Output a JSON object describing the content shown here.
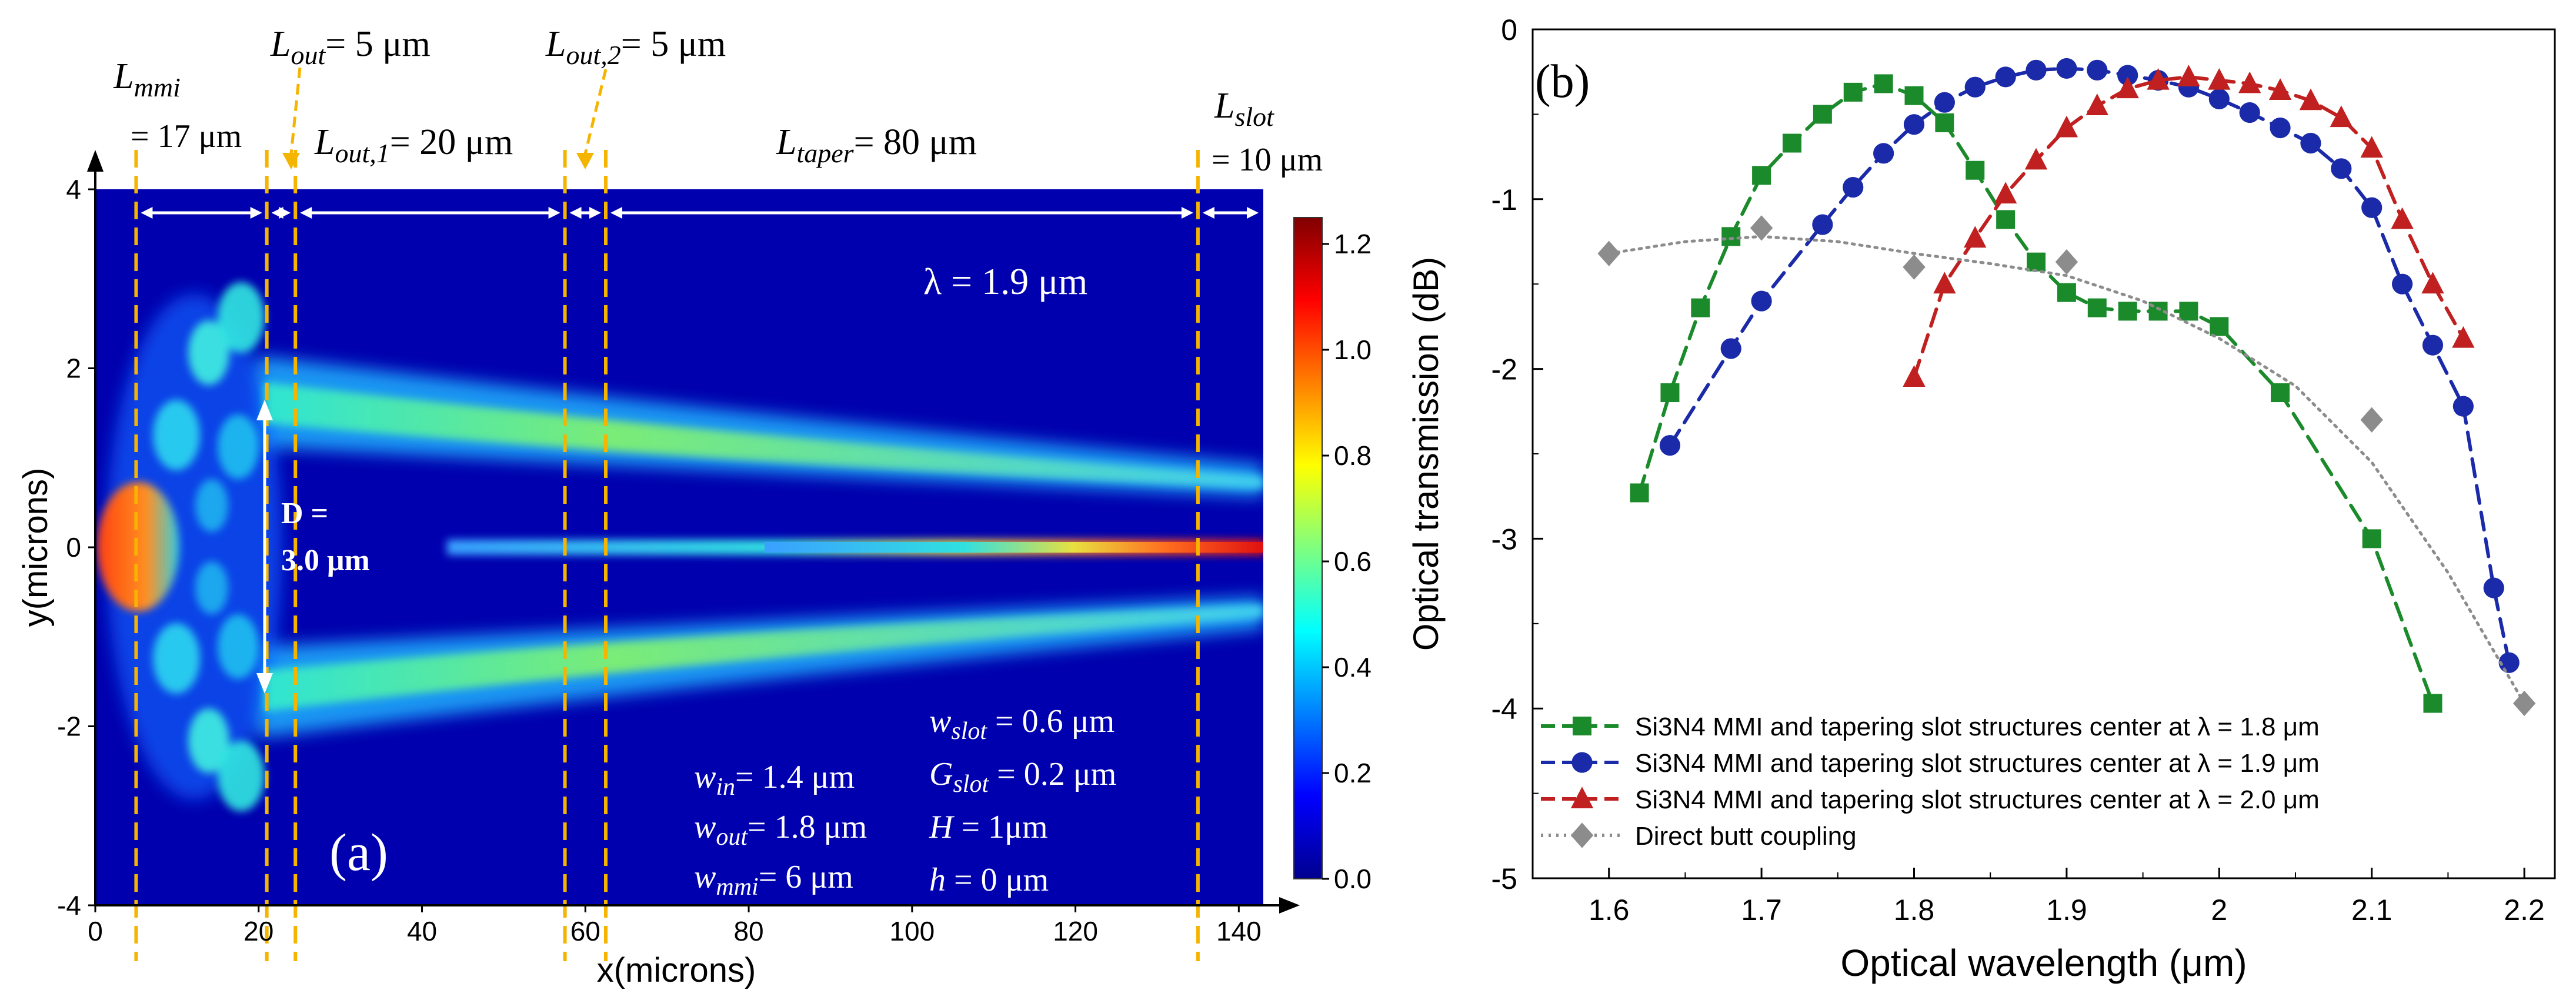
{
  "chart_data": [
    {
      "type": "heatmap",
      "panel": "(a)",
      "xlabel": "x(microns)",
      "ylabel": "y(microns)",
      "xlim": [
        0,
        143
      ],
      "ylim": [
        -4,
        4
      ],
      "xticks": [
        "0",
        "20",
        "40",
        "60",
        "80",
        "100",
        "120",
        "140"
      ],
      "yticks": [
        "4",
        "2",
        "0",
        "-2",
        "-4"
      ],
      "colorbar": {
        "range": [
          0,
          1.25
        ],
        "ticks": [
          "0.0",
          "0.2",
          "0.4",
          "0.6",
          "0.8",
          "1.0",
          "1.2"
        ]
      },
      "boundaries_x": [
        5,
        21,
        24.5,
        57.5,
        62.5,
        135
      ],
      "section_labels": [
        {
          "main": "L",
          "sub": "mmi",
          "line2": "= 17 μm"
        },
        {
          "main": "L",
          "sub": "out",
          "rest": "= 5 μm"
        },
        {
          "main": "L",
          "sub": "out,1",
          "rest": "= 20 μm"
        },
        {
          "main": "L",
          "sub": "out,2",
          "rest": "= 5 μm"
        },
        {
          "main": "L",
          "sub": "taper",
          "rest": "= 80 μm"
        },
        {
          "main": "L",
          "sub": "slot",
          "line2": "= 10 μm"
        }
      ],
      "wavelength_label": "λ = 1.9 μm",
      "d_label": {
        "line1": "D =",
        "line2": "3.0 μm"
      },
      "params_left": [
        {
          "main": "w",
          "sub": "in",
          "rest": "= 1.4 μm"
        },
        {
          "main": "w",
          "sub": "out",
          "rest": "= 1.8 μm"
        },
        {
          "main": "w",
          "sub": "mmi",
          "rest": "= 6 μm"
        }
      ],
      "params_right": [
        {
          "main": "w",
          "sub": "slot",
          "rest": " = 0.6 μm"
        },
        {
          "main": "G",
          "sub": "slot",
          "rest": " = 0.2 μm"
        },
        {
          "main": "H",
          "sub": "",
          "rest": " = 1μm"
        },
        {
          "main": "h",
          "sub": "",
          "rest": " = 0 μm"
        }
      ]
    },
    {
      "type": "line",
      "panel": "(b)",
      "xlabel": "Optical wavelength (μm)",
      "ylabel": "Optical transmission (dB)",
      "xlim": [
        1.55,
        2.22
      ],
      "ylim": [
        -5,
        0
      ],
      "xticks": [
        1.6,
        1.7,
        1.8,
        1.9,
        2.0,
        2.1,
        2.2
      ],
      "xtick_labels": [
        "1.6",
        "1.7",
        "1.8",
        "1.9",
        "2",
        "2.1",
        "2.2"
      ],
      "yticks": [
        0,
        -1,
        -2,
        -3,
        -4,
        -5
      ],
      "ytick_labels": [
        "0",
        "-1",
        "-2",
        "-3",
        "-4",
        "-5"
      ],
      "legend_position": "bottom-left",
      "series": [
        {
          "name": "Si3N4 MMI and tapering slot structures center at λ = 1.8 μm",
          "color": "#1a8a2a",
          "marker": "square",
          "line": "dashed",
          "x": [
            1.62,
            1.64,
            1.66,
            1.68,
            1.7,
            1.72,
            1.74,
            1.76,
            1.78,
            1.8,
            1.82,
            1.84,
            1.86,
            1.88,
            1.9,
            1.92,
            1.94,
            1.96,
            1.98,
            2.0,
            2.04,
            2.1,
            2.14
          ],
          "y": [
            -2.73,
            -2.14,
            -1.64,
            -1.22,
            -0.86,
            -0.67,
            -0.5,
            -0.37,
            -0.32,
            -0.39,
            -0.55,
            -0.83,
            -1.12,
            -1.37,
            -1.55,
            -1.64,
            -1.66,
            -1.66,
            -1.66,
            -1.75,
            -2.14,
            -3.0,
            -3.97
          ]
        },
        {
          "name": "Si3N4 MMI and tapering slot structures center at λ = 1.9 μm",
          "color": "#1a2aa8",
          "marker": "circle",
          "line": "dashed",
          "x": [
            1.64,
            1.68,
            1.7,
            1.74,
            1.76,
            1.78,
            1.8,
            1.82,
            1.84,
            1.86,
            1.88,
            1.9,
            1.92,
            1.94,
            1.96,
            1.98,
            2.0,
            2.02,
            2.04,
            2.06,
            2.08,
            2.1,
            2.12,
            2.14,
            2.16,
            2.18,
            2.19
          ],
          "y": [
            -2.45,
            -1.88,
            -1.6,
            -1.15,
            -0.93,
            -0.73,
            -0.56,
            -0.43,
            -0.34,
            -0.28,
            -0.24,
            -0.23,
            -0.24,
            -0.27,
            -0.3,
            -0.34,
            -0.41,
            -0.49,
            -0.58,
            -0.67,
            -0.82,
            -1.05,
            -1.5,
            -1.86,
            -2.22,
            -3.29,
            -3.73
          ]
        },
        {
          "name": "Si3N4 MMI and tapering slot structures center at λ = 2.0 μm",
          "color": "#c02020",
          "marker": "triangle",
          "line": "dashed",
          "x": [
            1.8,
            1.82,
            1.84,
            1.86,
            1.88,
            1.9,
            1.92,
            1.94,
            1.96,
            1.98,
            2.0,
            2.02,
            2.04,
            2.06,
            2.08,
            2.1,
            2.12,
            2.14,
            2.16
          ],
          "y": [
            -2.05,
            -1.5,
            -1.23,
            -0.97,
            -0.77,
            -0.58,
            -0.45,
            -0.35,
            -0.3,
            -0.28,
            -0.3,
            -0.32,
            -0.36,
            -0.42,
            -0.52,
            -0.7,
            -1.12,
            -1.5,
            -1.82
          ]
        },
        {
          "name": "Direct butt coupling",
          "color": "#8c8c8c",
          "marker": "diamond",
          "line": "dotted",
          "x": [
            1.6,
            1.7,
            1.8,
            1.9,
            2.1,
            2.2
          ],
          "y": [
            -1.32,
            -1.17,
            -1.4,
            -1.37,
            -2.3,
            -3.97
          ],
          "curve_x": [
            1.6,
            1.65,
            1.7,
            1.75,
            1.8,
            1.85,
            1.9,
            1.95,
            2.0,
            2.05,
            2.1,
            2.15,
            2.2
          ],
          "curve_y": [
            -1.32,
            -1.25,
            -1.22,
            -1.25,
            -1.32,
            -1.38,
            -1.45,
            -1.6,
            -1.82,
            -2.1,
            -2.55,
            -3.2,
            -3.97
          ]
        }
      ]
    }
  ]
}
